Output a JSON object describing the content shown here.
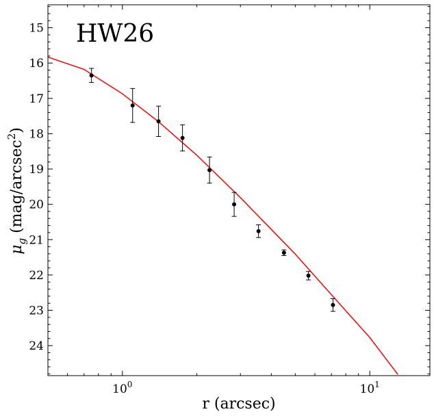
{
  "chart_data": {
    "type": "scatter",
    "annotation": "HW26",
    "xlabel": "r (arcsec)",
    "ylabel": "μg (mag/arcsec2)",
    "ylabel_parts": {
      "mu": "μ",
      "sub": "g",
      "text": " (mag/arcsec",
      "sup": "2",
      "close": ")"
    },
    "x_scale": "log",
    "xlim": [
      0.5,
      17.5
    ],
    "ylim": [
      24.85,
      14.35
    ],
    "y_inverted": true,
    "grid": false,
    "legend": "none",
    "colors": {
      "points": "#000000",
      "model": "#ff0000"
    },
    "xticks": [
      {
        "value": 1,
        "label": "10",
        "exp": "0"
      },
      {
        "value": 10,
        "label": "10",
        "exp": "1"
      }
    ],
    "yticks": [
      15,
      16,
      17,
      18,
      19,
      20,
      21,
      22,
      23,
      24
    ],
    "series": [
      {
        "kind": "points_with_errorbars",
        "x": [
          0.75,
          1.1,
          1.4,
          1.75,
          2.25,
          2.83,
          3.55,
          4.5,
          5.65,
          7.1
        ],
        "y": [
          16.35,
          17.2,
          17.65,
          18.12,
          19.03,
          20.0,
          20.76,
          21.37,
          22.02,
          22.85
        ],
        "err": [
          0.2,
          0.48,
          0.43,
          0.37,
          0.37,
          0.34,
          0.18,
          0.08,
          0.12,
          0.18
        ]
      },
      {
        "kind": "line",
        "x": [
          0.5,
          0.7,
          1.0,
          1.4,
          2.0,
          3.0,
          4.0,
          5.0,
          7.0,
          10.0,
          13.0
        ],
        "y": [
          15.83,
          16.18,
          16.87,
          17.66,
          18.61,
          19.81,
          20.71,
          21.41,
          22.56,
          23.77,
          24.82
        ]
      }
    ]
  }
}
